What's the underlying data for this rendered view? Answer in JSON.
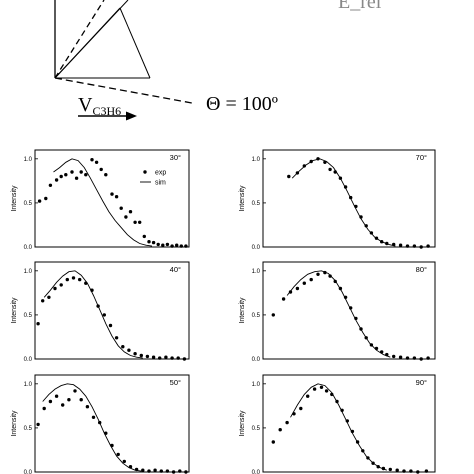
{
  "header": {
    "velocity_symbol": "V",
    "velocity_subscript": "C3H6",
    "theta_label": "Θ = 100º",
    "cropped_top_right": "E_rel"
  },
  "panel_common": {
    "y_axis_label": "Intensity",
    "y_tick_labels": [
      "0.0",
      "0.5",
      "1.0"
    ],
    "legend": {
      "exp": "exp",
      "sim": "sim"
    }
  },
  "chart_data": [
    {
      "type": "scatter",
      "angle_label": "30°",
      "has_legend": true,
      "ylim": [
        0,
        1.1
      ],
      "series": [
        {
          "name": "exp",
          "kind": "points",
          "points": [
            [
              0.03,
              0.52
            ],
            [
              0.07,
              0.55
            ],
            [
              0.1,
              0.7
            ],
            [
              0.14,
              0.76
            ],
            [
              0.17,
              0.8
            ],
            [
              0.2,
              0.82
            ],
            [
              0.24,
              0.85
            ],
            [
              0.27,
              0.78
            ],
            [
              0.3,
              0.85
            ],
            [
              0.33,
              0.82
            ],
            [
              0.37,
              0.99
            ],
            [
              0.4,
              0.96
            ],
            [
              0.43,
              0.88
            ],
            [
              0.46,
              0.82
            ],
            [
              0.5,
              0.6
            ],
            [
              0.53,
              0.57
            ],
            [
              0.56,
              0.44
            ],
            [
              0.59,
              0.34
            ],
            [
              0.62,
              0.4
            ],
            [
              0.65,
              0.28
            ],
            [
              0.68,
              0.28
            ],
            [
              0.71,
              0.12
            ],
            [
              0.74,
              0.06
            ],
            [
              0.77,
              0.05
            ],
            [
              0.8,
              0.03
            ],
            [
              0.83,
              0.02
            ],
            [
              0.86,
              0.03
            ],
            [
              0.89,
              0.01
            ],
            [
              0.92,
              0.02
            ],
            [
              0.95,
              0.01
            ],
            [
              0.98,
              0.01
            ]
          ]
        },
        {
          "name": "sim",
          "kind": "line",
          "points": [
            [
              0.12,
              0.85
            ],
            [
              0.16,
              0.9
            ],
            [
              0.2,
              0.96
            ],
            [
              0.24,
              1.0
            ],
            [
              0.28,
              0.98
            ],
            [
              0.32,
              0.9
            ],
            [
              0.36,
              0.78
            ],
            [
              0.4,
              0.65
            ],
            [
              0.44,
              0.52
            ],
            [
              0.48,
              0.4
            ],
            [
              0.52,
              0.3
            ],
            [
              0.56,
              0.22
            ],
            [
              0.6,
              0.14
            ],
            [
              0.64,
              0.08
            ],
            [
              0.68,
              0.04
            ],
            [
              0.72,
              0.02
            ],
            [
              0.76,
              0.01
            ]
          ]
        }
      ]
    },
    {
      "type": "scatter",
      "angle_label": "70°",
      "has_legend": false,
      "ylim": [
        0,
        1.1
      ],
      "series": [
        {
          "name": "exp",
          "kind": "points",
          "points": [
            [
              0.15,
              0.8
            ],
            [
              0.2,
              0.84
            ],
            [
              0.24,
              0.92
            ],
            [
              0.28,
              0.97
            ],
            [
              0.32,
              1.0
            ],
            [
              0.36,
              0.96
            ],
            [
              0.39,
              0.88
            ],
            [
              0.42,
              0.85
            ],
            [
              0.45,
              0.78
            ],
            [
              0.48,
              0.68
            ],
            [
              0.51,
              0.56
            ],
            [
              0.54,
              0.46
            ],
            [
              0.57,
              0.34
            ],
            [
              0.6,
              0.24
            ],
            [
              0.63,
              0.16
            ],
            [
              0.66,
              0.1
            ],
            [
              0.69,
              0.06
            ],
            [
              0.72,
              0.04
            ],
            [
              0.76,
              0.03
            ],
            [
              0.8,
              0.02
            ],
            [
              0.84,
              0.01
            ],
            [
              0.88,
              0.01
            ],
            [
              0.92,
              0.0
            ],
            [
              0.96,
              0.01
            ]
          ]
        },
        {
          "name": "sim",
          "kind": "line",
          "points": [
            [
              0.17,
              0.78
            ],
            [
              0.21,
              0.86
            ],
            [
              0.25,
              0.93
            ],
            [
              0.29,
              0.98
            ],
            [
              0.33,
              1.0
            ],
            [
              0.37,
              0.97
            ],
            [
              0.41,
              0.9
            ],
            [
              0.45,
              0.78
            ],
            [
              0.49,
              0.63
            ],
            [
              0.53,
              0.47
            ],
            [
              0.57,
              0.32
            ],
            [
              0.61,
              0.2
            ],
            [
              0.65,
              0.11
            ],
            [
              0.69,
              0.06
            ],
            [
              0.73,
              0.03
            ],
            [
              0.77,
              0.01
            ]
          ]
        }
      ]
    },
    {
      "type": "scatter",
      "angle_label": "40°",
      "has_legend": false,
      "ylim": [
        0,
        1.1
      ],
      "series": [
        {
          "name": "exp",
          "kind": "points",
          "points": [
            [
              0.02,
              0.4
            ],
            [
              0.05,
              0.66
            ],
            [
              0.09,
              0.7
            ],
            [
              0.13,
              0.8
            ],
            [
              0.17,
              0.84
            ],
            [
              0.21,
              0.9
            ],
            [
              0.25,
              0.92
            ],
            [
              0.29,
              0.9
            ],
            [
              0.33,
              0.86
            ],
            [
              0.37,
              0.78
            ],
            [
              0.41,
              0.6
            ],
            [
              0.45,
              0.5
            ],
            [
              0.49,
              0.38
            ],
            [
              0.53,
              0.24
            ],
            [
              0.57,
              0.14
            ],
            [
              0.61,
              0.1
            ],
            [
              0.65,
              0.06
            ],
            [
              0.69,
              0.04
            ],
            [
              0.73,
              0.03
            ],
            [
              0.77,
              0.02
            ],
            [
              0.81,
              0.01
            ],
            [
              0.85,
              0.02
            ],
            [
              0.89,
              0.01
            ],
            [
              0.93,
              0.01
            ],
            [
              0.97,
              0.0
            ]
          ]
        },
        {
          "name": "sim",
          "kind": "line",
          "points": [
            [
              0.06,
              0.7
            ],
            [
              0.1,
              0.78
            ],
            [
              0.14,
              0.87
            ],
            [
              0.18,
              0.94
            ],
            [
              0.22,
              0.99
            ],
            [
              0.26,
              1.0
            ],
            [
              0.3,
              0.95
            ],
            [
              0.34,
              0.86
            ],
            [
              0.38,
              0.72
            ],
            [
              0.42,
              0.56
            ],
            [
              0.46,
              0.4
            ],
            [
              0.5,
              0.26
            ],
            [
              0.54,
              0.15
            ],
            [
              0.58,
              0.08
            ],
            [
              0.62,
              0.04
            ],
            [
              0.66,
              0.02
            ],
            [
              0.7,
              0.01
            ]
          ]
        }
      ]
    },
    {
      "type": "scatter",
      "angle_label": "80°",
      "has_legend": false,
      "ylim": [
        0,
        1.1
      ],
      "series": [
        {
          "name": "exp",
          "kind": "points",
          "points": [
            [
              0.06,
              0.5
            ],
            [
              0.12,
              0.68
            ],
            [
              0.16,
              0.76
            ],
            [
              0.2,
              0.8
            ],
            [
              0.24,
              0.86
            ],
            [
              0.28,
              0.9
            ],
            [
              0.32,
              0.96
            ],
            [
              0.36,
              0.98
            ],
            [
              0.39,
              0.94
            ],
            [
              0.42,
              0.88
            ],
            [
              0.45,
              0.8
            ],
            [
              0.48,
              0.7
            ],
            [
              0.51,
              0.58
            ],
            [
              0.54,
              0.46
            ],
            [
              0.57,
              0.34
            ],
            [
              0.6,
              0.24
            ],
            [
              0.63,
              0.16
            ],
            [
              0.66,
              0.12
            ],
            [
              0.69,
              0.08
            ],
            [
              0.72,
              0.05
            ],
            [
              0.76,
              0.03
            ],
            [
              0.8,
              0.02
            ],
            [
              0.84,
              0.01
            ],
            [
              0.88,
              0.01
            ],
            [
              0.92,
              0.0
            ],
            [
              0.96,
              0.01
            ]
          ]
        },
        {
          "name": "sim",
          "kind": "line",
          "points": [
            [
              0.14,
              0.72
            ],
            [
              0.18,
              0.82
            ],
            [
              0.22,
              0.9
            ],
            [
              0.26,
              0.96
            ],
            [
              0.3,
              0.99
            ],
            [
              0.34,
              1.0
            ],
            [
              0.38,
              0.97
            ],
            [
              0.42,
              0.89
            ],
            [
              0.46,
              0.76
            ],
            [
              0.5,
              0.6
            ],
            [
              0.54,
              0.44
            ],
            [
              0.58,
              0.3
            ],
            [
              0.62,
              0.18
            ],
            [
              0.66,
              0.1
            ],
            [
              0.7,
              0.05
            ],
            [
              0.74,
              0.02
            ]
          ]
        }
      ]
    },
    {
      "type": "scatter",
      "angle_label": "50°",
      "has_legend": false,
      "ylim": [
        0,
        1.1
      ],
      "series": [
        {
          "name": "exp",
          "kind": "points",
          "points": [
            [
              0.02,
              0.54
            ],
            [
              0.06,
              0.72
            ],
            [
              0.1,
              0.8
            ],
            [
              0.14,
              0.86
            ],
            [
              0.18,
              0.76
            ],
            [
              0.22,
              0.82
            ],
            [
              0.26,
              0.92
            ],
            [
              0.3,
              0.82
            ],
            [
              0.34,
              0.74
            ],
            [
              0.38,
              0.62
            ],
            [
              0.42,
              0.56
            ],
            [
              0.46,
              0.44
            ],
            [
              0.5,
              0.3
            ],
            [
              0.54,
              0.2
            ],
            [
              0.58,
              0.12
            ],
            [
              0.62,
              0.06
            ],
            [
              0.66,
              0.03
            ],
            [
              0.7,
              0.02
            ],
            [
              0.74,
              0.01
            ],
            [
              0.78,
              0.02
            ],
            [
              0.82,
              0.01
            ],
            [
              0.86,
              0.01
            ],
            [
              0.9,
              0.0
            ],
            [
              0.94,
              0.01
            ],
            [
              0.98,
              0.0
            ]
          ]
        },
        {
          "name": "sim",
          "kind": "line",
          "points": [
            [
              0.05,
              0.8
            ],
            [
              0.09,
              0.88
            ],
            [
              0.13,
              0.94
            ],
            [
              0.17,
              0.98
            ],
            [
              0.21,
              1.0
            ],
            [
              0.25,
              0.99
            ],
            [
              0.29,
              0.94
            ],
            [
              0.33,
              0.86
            ],
            [
              0.37,
              0.74
            ],
            [
              0.41,
              0.6
            ],
            [
              0.45,
              0.44
            ],
            [
              0.49,
              0.3
            ],
            [
              0.53,
              0.18
            ],
            [
              0.57,
              0.1
            ],
            [
              0.61,
              0.05
            ],
            [
              0.65,
              0.02
            ],
            [
              0.69,
              0.01
            ]
          ]
        }
      ]
    },
    {
      "type": "scatter",
      "angle_label": "90°",
      "has_legend": false,
      "ylim": [
        0,
        1.1
      ],
      "series": [
        {
          "name": "exp",
          "kind": "points",
          "points": [
            [
              0.06,
              0.34
            ],
            [
              0.1,
              0.48
            ],
            [
              0.14,
              0.56
            ],
            [
              0.18,
              0.66
            ],
            [
              0.22,
              0.72
            ],
            [
              0.26,
              0.86
            ],
            [
              0.3,
              0.94
            ],
            [
              0.34,
              0.96
            ],
            [
              0.37,
              0.92
            ],
            [
              0.4,
              0.88
            ],
            [
              0.43,
              0.8
            ],
            [
              0.46,
              0.7
            ],
            [
              0.49,
              0.58
            ],
            [
              0.52,
              0.46
            ],
            [
              0.55,
              0.34
            ],
            [
              0.58,
              0.24
            ],
            [
              0.61,
              0.16
            ],
            [
              0.64,
              0.1
            ],
            [
              0.67,
              0.06
            ],
            [
              0.7,
              0.04
            ],
            [
              0.74,
              0.03
            ],
            [
              0.78,
              0.02
            ],
            [
              0.82,
              0.01
            ],
            [
              0.86,
              0.01
            ],
            [
              0.9,
              0.0
            ],
            [
              0.95,
              0.01
            ]
          ]
        },
        {
          "name": "sim",
          "kind": "line",
          "points": [
            [
              0.16,
              0.62
            ],
            [
              0.2,
              0.76
            ],
            [
              0.24,
              0.88
            ],
            [
              0.28,
              0.96
            ],
            [
              0.32,
              1.0
            ],
            [
              0.36,
              0.98
            ],
            [
              0.4,
              0.9
            ],
            [
              0.44,
              0.76
            ],
            [
              0.48,
              0.6
            ],
            [
              0.52,
              0.44
            ],
            [
              0.56,
              0.3
            ],
            [
              0.6,
              0.18
            ],
            [
              0.64,
              0.1
            ],
            [
              0.68,
              0.05
            ],
            [
              0.72,
              0.02
            ]
          ]
        }
      ]
    }
  ]
}
